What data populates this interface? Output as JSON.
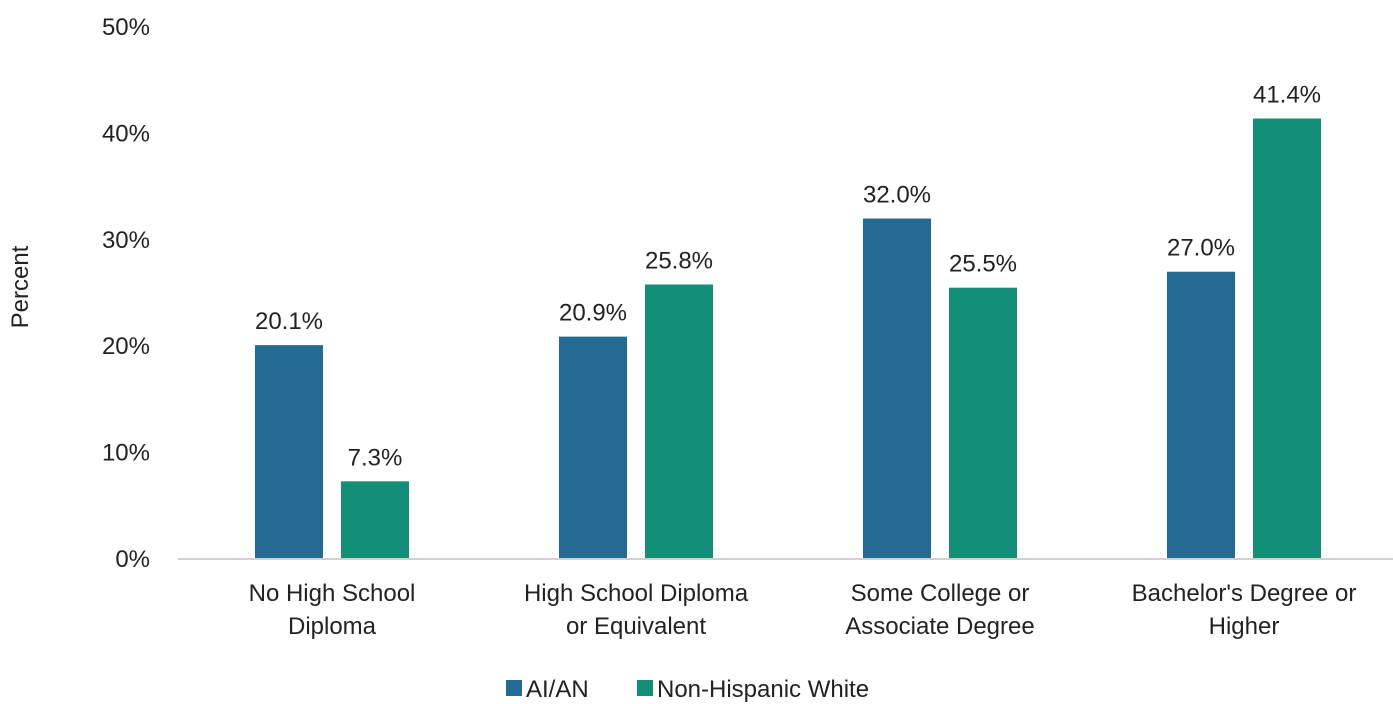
{
  "chart_data": {
    "type": "bar",
    "title": "",
    "xlabel": "",
    "ylabel": "Percent",
    "ylim": [
      0,
      50
    ],
    "yticks": [
      0,
      10,
      20,
      30,
      40,
      50
    ],
    "ytick_labels": [
      "0%",
      "10%",
      "20%",
      "30%",
      "40%",
      "50%"
    ],
    "grid": false,
    "legend_position": "bottom-center",
    "categories": [
      [
        "No High School",
        "Diploma"
      ],
      [
        "High School Diploma",
        "or Equivalent"
      ],
      [
        "Some College or",
        "Associate Degree"
      ],
      [
        "Bachelor's Degree or",
        "Higher"
      ]
    ],
    "series": [
      {
        "name": "AI/AN",
        "color": "#236b93",
        "values": [
          20.1,
          20.9,
          32.0,
          27.0
        ],
        "labels": [
          "20.1%",
          "20.9%",
          "32.0%",
          "27.0%"
        ]
      },
      {
        "name": "Non-Hispanic White",
        "color": "#128f76",
        "values": [
          7.3,
          25.8,
          25.5,
          41.4
        ],
        "labels": [
          "7.3%",
          "25.8%",
          "25.5%",
          "41.4%"
        ]
      }
    ]
  }
}
